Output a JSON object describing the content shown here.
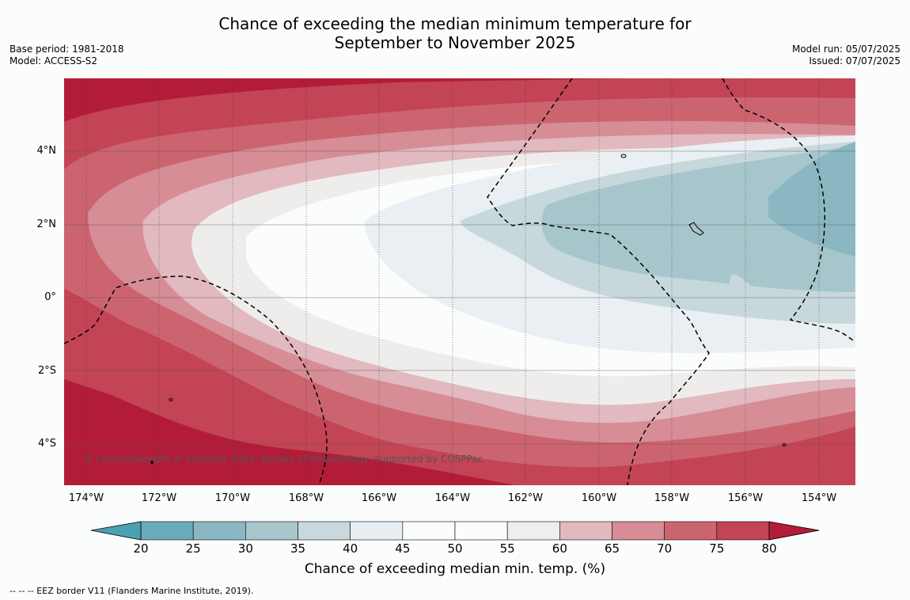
{
  "title": {
    "line1": "Chance of exceeding the median minimum temperature for",
    "line2": "September to November 2025"
  },
  "meta_left": {
    "base_period": "Base period: 1981-2018",
    "model": "Model: ACCESS-S2"
  },
  "meta_right": {
    "model_run": "Model run: 05/07/2025",
    "issued": "Issued: 07/07/2025"
  },
  "map": {
    "copyright": "© Commonwealth of Australia 2025, Bureau of Meteorology, supported by COSPPac",
    "lat_labels": [
      "4°N",
      "2°N",
      "0°",
      "2°S",
      "4°S"
    ],
    "lon_labels": [
      "174°W",
      "172°W",
      "170°W",
      "168°W",
      "166°W",
      "164°W",
      "162°W",
      "160°W",
      "158°W",
      "156°W",
      "154°W"
    ],
    "colors": {
      "c0": "#b31c38",
      "c1": "#c34454",
      "c2": "#cc6470",
      "c3": "#d68d96",
      "c4": "#e1b9bf",
      "c5": "#efedec",
      "c6": "#fbfdfd",
      "c7": "#e9eff2",
      "c8": "#c7d8dd",
      "c9": "#a7c6cc",
      "c10": "#8bb7c2"
    }
  },
  "colorbar": {
    "ticks": [
      "20",
      "25",
      "30",
      "35",
      "40",
      "45",
      "50",
      "55",
      "60",
      "65",
      "70",
      "75",
      "80"
    ],
    "colors": [
      "#6aabbb",
      "#8bb7c4",
      "#a8c6cc",
      "#c8d8dc",
      "#e8eff2",
      "#fbfdfd",
      "#fbfdfd",
      "#f0eeec",
      "#e1b9bf",
      "#d68d96",
      "#cc6470",
      "#c34454"
    ],
    "low_extend_color": "#4aa1b1",
    "high_extend_color": "#b31c38",
    "title": "Chance of exceeding median min. temp. (%)"
  },
  "footnote": "--  --  -- EEZ border V11 (Flanders Marine Institute, 2019)."
}
